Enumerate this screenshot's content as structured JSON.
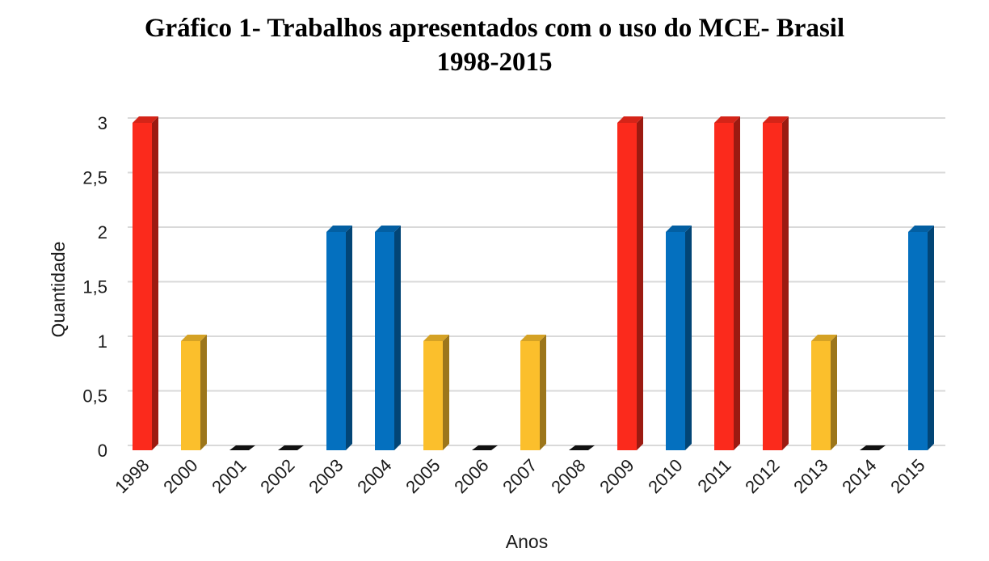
{
  "chart_data": {
    "type": "bar",
    "title_lines": [
      "Gráfico 1- Trabalhos apresentados com o uso do MCE- Brasil",
      "1998-2015"
    ],
    "xlabel": "Anos",
    "ylabel": "Quantidade",
    "categories": [
      "1998",
      "2000",
      "2001",
      "2002",
      "2003",
      "2004",
      "2005",
      "2006",
      "2007",
      "2008",
      "2009",
      "2010",
      "2011",
      "2012",
      "2013",
      "2014",
      "2015"
    ],
    "values": [
      3,
      1,
      0,
      0,
      2,
      2,
      1,
      0,
      1,
      0,
      3,
      2,
      3,
      3,
      1,
      0,
      2
    ],
    "yticks": [
      "0",
      "0,5",
      "1",
      "1,5",
      "2",
      "2,5",
      "3"
    ],
    "ylim": [
      0,
      3
    ],
    "grid": true,
    "legend": "none",
    "bar_style": "3d-column",
    "colors_by_value": {
      "0": "#111111",
      "1": "#fbbf2c",
      "2": "#0470bf",
      "3": "#fb2a1c"
    }
  }
}
